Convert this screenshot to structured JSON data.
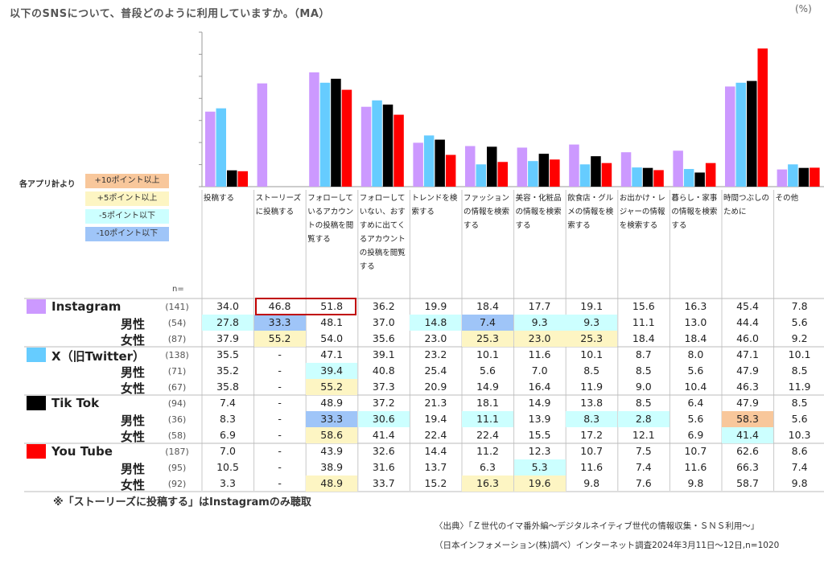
{
  "question": "以下のSNSについて、普段どのように利用していますか。（MA）",
  "unit": "(%)",
  "legend": {
    "title": "各アプリ計より",
    "items": [
      {
        "label": "+10ポイント以上",
        "color": "#f8c79b"
      },
      {
        "label": "+5ポイント以上",
        "color": "#fdf5c3"
      },
      {
        "label": "-5ポイント以下",
        "color": "#ccffff"
      },
      {
        "label": "-10ポイント以下",
        "color": "#9fc5f8"
      }
    ]
  },
  "n_label": "n=",
  "categories": [
    "投稿する",
    "ストーリーズに投稿する",
    "フォローしているアカウントの投稿を閲覧する",
    "フォローしていない、おすすめに出てくるアカウントの投稿を閲覧する",
    "トレンドを検索する",
    "ファッションの情報を検索する",
    "美容・化粧品の情報を検索する",
    "飲食店・グルメの情報を検索する",
    "お出かけ・レジャーの情報を検索する",
    "暮らし・家事の情報を検索する",
    "時間つぶしのために",
    "その他"
  ],
  "category_lines": [
    [
      "投稿する"
    ],
    [
      "ストーリーズ",
      "に投稿する"
    ],
    [
      "フォローして",
      "いるアカウン",
      "トの投稿を閲",
      "覧する"
    ],
    [
      "フォローして",
      "いない、おす",
      "すめに出てく",
      "るアカウント",
      "の投稿を閲覧",
      "する"
    ],
    [
      "トレンドを検",
      "索する"
    ],
    [
      "ファッション",
      "の情報を検索",
      "する"
    ],
    [
      "美容・化粧品",
      "の情報を検索",
      "する"
    ],
    [
      "飲食店・グル",
      "メの情報を検",
      "索する"
    ],
    [
      "お出かけ・レ",
      "ジャーの情報",
      "を検索する"
    ],
    [
      "暮らし・家事",
      "の情報を検索",
      "する"
    ],
    [
      "時間つぶしの",
      "ために"
    ],
    [
      "その他"
    ]
  ],
  "chart_data": {
    "type": "bar",
    "categories": [
      "投稿する",
      "ストーリーズに投稿する",
      "フォローしているアカウントの投稿を閲覧する",
      "フォローしていない、おすすめに出てくるアカウントの投稿を閲覧する",
      "トレンドを検索する",
      "ファッションの情報を検索する",
      "美容・化粧品の情報を検索する",
      "飲食店・グルメの情報を検索する",
      "お出かけ・レジャーの情報を検索する",
      "暮らし・家事の情報を検索する",
      "時間つぶしのために",
      "その他"
    ],
    "ylim": [
      0,
      70
    ],
    "series": [
      {
        "name": "Instagram",
        "color": "#cc99ff",
        "values": [
          34.0,
          46.8,
          51.8,
          36.2,
          19.9,
          18.4,
          17.7,
          19.1,
          15.6,
          16.3,
          45.4,
          7.8
        ]
      },
      {
        "name": "X（旧Twitter）",
        "color": "#66ccff",
        "values": [
          35.5,
          null,
          47.1,
          39.1,
          23.2,
          10.1,
          11.6,
          10.1,
          8.7,
          8.0,
          47.1,
          10.1
        ]
      },
      {
        "name": "Tik Tok",
        "color": "#000000",
        "values": [
          7.4,
          null,
          48.9,
          37.2,
          21.3,
          18.1,
          14.9,
          13.8,
          8.5,
          6.4,
          47.9,
          8.5
        ]
      },
      {
        "name": "You Tube",
        "color": "#ff0000",
        "values": [
          7.0,
          null,
          43.9,
          32.6,
          14.4,
          11.2,
          12.3,
          10.7,
          7.5,
          10.7,
          62.6,
          8.6
        ]
      }
    ]
  },
  "table": {
    "groups": [
      {
        "name": "Instagram",
        "color": "#cc99ff",
        "rows": [
          {
            "label": "Instagram",
            "n": "(141)",
            "values": [
              "34.0",
              "46.8",
              "51.8",
              "36.2",
              "19.9",
              "18.4",
              "17.7",
              "19.1",
              "15.6",
              "16.3",
              "45.4",
              "7.8"
            ],
            "hl": [
              "",
              "",
              "",
              "",
              "",
              "",
              "",
              "",
              "",
              "",
              "",
              ""
            ]
          },
          {
            "label": "男性",
            "n": "(54)",
            "values": [
              "27.8",
              "33.3",
              "48.1",
              "37.0",
              "14.8",
              "7.4",
              "9.3",
              "9.3",
              "11.1",
              "13.0",
              "44.4",
              "5.6"
            ],
            "hl": [
              "c",
              "b",
              "",
              "",
              "c",
              "b",
              "c",
              "c",
              "",
              "",
              "",
              ""
            ]
          },
          {
            "label": "女性",
            "n": "(87)",
            "values": [
              "37.9",
              "55.2",
              "54.0",
              "35.6",
              "23.0",
              "25.3",
              "23.0",
              "25.3",
              "18.4",
              "18.4",
              "46.0",
              "9.2"
            ],
            "hl": [
              "",
              "y",
              "",
              "",
              "",
              "y",
              "y",
              "y",
              "",
              "",
              "",
              ""
            ]
          }
        ]
      },
      {
        "name": "X（旧Twitter）",
        "color": "#66ccff",
        "rows": [
          {
            "label": "X（旧Twitter）",
            "n": "(138)",
            "values": [
              "35.5",
              "-",
              "47.1",
              "39.1",
              "23.2",
              "10.1",
              "11.6",
              "10.1",
              "8.7",
              "8.0",
              "47.1",
              "10.1"
            ],
            "hl": [
              "",
              "",
              "",
              "",
              "",
              "",
              "",
              "",
              "",
              "",
              "",
              ""
            ]
          },
          {
            "label": "男性",
            "n": "(71)",
            "values": [
              "35.2",
              "-",
              "39.4",
              "40.8",
              "25.4",
              "5.6",
              "7.0",
              "8.5",
              "8.5",
              "5.6",
              "47.9",
              "8.5"
            ],
            "hl": [
              "",
              "",
              "c",
              "",
              "",
              "",
              "",
              "",
              "",
              "",
              "",
              ""
            ]
          },
          {
            "label": "女性",
            "n": "(67)",
            "values": [
              "35.8",
              "-",
              "55.2",
              "37.3",
              "20.9",
              "14.9",
              "16.4",
              "11.9",
              "9.0",
              "10.4",
              "46.3",
              "11.9"
            ],
            "hl": [
              "",
              "",
              "y",
              "",
              "",
              "",
              "",
              "",
              "",
              "",
              "",
              ""
            ]
          }
        ]
      },
      {
        "name": "Tik Tok",
        "color": "#000000",
        "rows": [
          {
            "label": "Tik Tok",
            "n": "(94)",
            "values": [
              "7.4",
              "-",
              "48.9",
              "37.2",
              "21.3",
              "18.1",
              "14.9",
              "13.8",
              "8.5",
              "6.4",
              "47.9",
              "8.5"
            ],
            "hl": [
              "",
              "",
              "",
              "",
              "",
              "",
              "",
              "",
              "",
              "",
              "",
              ""
            ]
          },
          {
            "label": "男性",
            "n": "(36)",
            "values": [
              "8.3",
              "-",
              "33.3",
              "30.6",
              "19.4",
              "11.1",
              "13.9",
              "8.3",
              "2.8",
              "5.6",
              "58.3",
              "5.6"
            ],
            "hl": [
              "",
              "",
              "b",
              "c",
              "",
              "c",
              "",
              "c",
              "c",
              "",
              "o",
              ""
            ]
          },
          {
            "label": "女性",
            "n": "(58)",
            "values": [
              "6.9",
              "-",
              "58.6",
              "41.4",
              "22.4",
              "22.4",
              "15.5",
              "17.2",
              "12.1",
              "6.9",
              "41.4",
              "10.3"
            ],
            "hl": [
              "",
              "",
              "y",
              "",
              "",
              "",
              "",
              "",
              "",
              "",
              "c",
              ""
            ]
          }
        ]
      },
      {
        "name": "You Tube",
        "color": "#ff0000",
        "rows": [
          {
            "label": "You Tube",
            "n": "(187)",
            "values": [
              "7.0",
              "-",
              "43.9",
              "32.6",
              "14.4",
              "11.2",
              "12.3",
              "10.7",
              "7.5",
              "10.7",
              "62.6",
              "8.6"
            ],
            "hl": [
              "",
              "",
              "",
              "",
              "",
              "",
              "",
              "",
              "",
              "",
              "",
              ""
            ]
          },
          {
            "label": "男性",
            "n": "(95)",
            "values": [
              "10.5",
              "-",
              "38.9",
              "31.6",
              "13.7",
              "6.3",
              "5.3",
              "11.6",
              "7.4",
              "11.6",
              "66.3",
              "7.4"
            ],
            "hl": [
              "",
              "",
              "",
              "",
              "",
              "",
              "c",
              "",
              "",
              "",
              "",
              ""
            ]
          },
          {
            "label": "女性",
            "n": "(92)",
            "values": [
              "3.3",
              "-",
              "48.9",
              "33.7",
              "15.2",
              "16.3",
              "19.6",
              "9.8",
              "7.6",
              "9.8",
              "58.7",
              "9.8"
            ],
            "hl": [
              "",
              "",
              "y",
              "",
              "",
              "y",
              "y",
              "",
              "",
              "",
              "",
              ""
            ]
          }
        ]
      }
    ]
  },
  "highlight_colors": {
    "o": "#f8c79b",
    "y": "#fdf5c3",
    "c": "#ccffff",
    "b": "#9fc5f8"
  },
  "note": "※「ストーリーズに投稿する」はInstagramのみ聴取",
  "source": {
    "line1": "〈出典〉「Ｚ世代のイマ番外編～デジタルネイティブ世代の情報収集・ＳＮＳ利用～」",
    "line2": "（日本インフォメーション(株)調べ）インターネット調査2024年3月11日～12日,n=1020"
  }
}
